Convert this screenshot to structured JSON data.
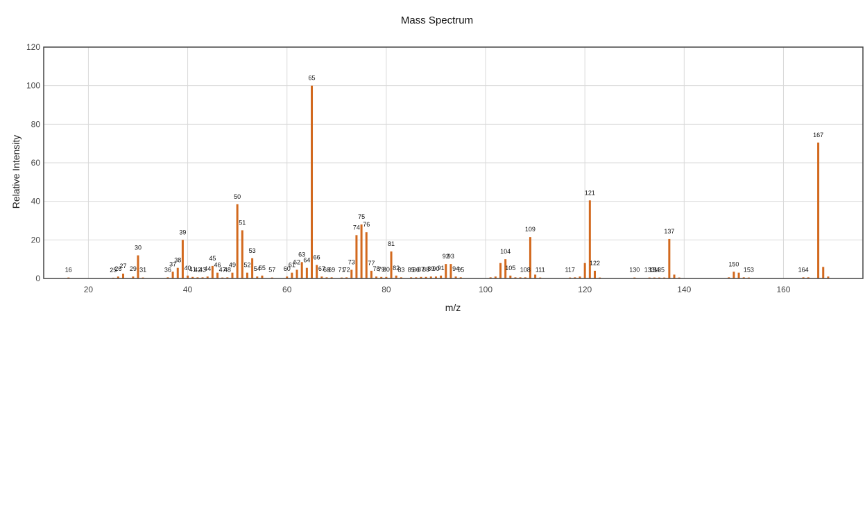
{
  "chart_data": {
    "type": "bar",
    "title": "Mass Spectrum",
    "xlabel": "m/z",
    "ylabel": "Relative Intensity",
    "xlim": [
      11,
      176
    ],
    "ylim": [
      0,
      120
    ],
    "xticks": [
      20,
      40,
      60,
      80,
      100,
      120,
      140,
      160
    ],
    "yticks": [
      0,
      20,
      40,
      60,
      80,
      100,
      120
    ],
    "grid": true,
    "bar_color": "#d2691e",
    "peaks": [
      {
        "mz": 16,
        "intensity": 0.5,
        "label": "16"
      },
      {
        "mz": 25,
        "intensity": 0.4,
        "label": "25"
      },
      {
        "mz": 26,
        "intensity": 1.0,
        "label": "26"
      },
      {
        "mz": 27,
        "intensity": 2.5,
        "label": "27"
      },
      {
        "mz": 29,
        "intensity": 1.0,
        "label": "29"
      },
      {
        "mz": 30,
        "intensity": 12.0,
        "label": "30"
      },
      {
        "mz": 31,
        "intensity": 0.5,
        "label": "31"
      },
      {
        "mz": 36,
        "intensity": 0.6,
        "label": "36"
      },
      {
        "mz": 37,
        "intensity": 3.5,
        "label": "37"
      },
      {
        "mz": 38,
        "intensity": 5.5,
        "label": "38"
      },
      {
        "mz": 39,
        "intensity": 20.0,
        "label": "39"
      },
      {
        "mz": 40,
        "intensity": 1.5,
        "label": "40"
      },
      {
        "mz": 41,
        "intensity": 0.8,
        "label": "41"
      },
      {
        "mz": 42,
        "intensity": 0.6,
        "label": "42"
      },
      {
        "mz": 43,
        "intensity": 0.6,
        "label": "43"
      },
      {
        "mz": 44,
        "intensity": 1.0,
        "label": "44"
      },
      {
        "mz": 45,
        "intensity": 6.5,
        "label": "45"
      },
      {
        "mz": 46,
        "intensity": 3.0,
        "label": "46"
      },
      {
        "mz": 47,
        "intensity": 0.5,
        "label": "47"
      },
      {
        "mz": 48,
        "intensity": 0.6,
        "label": "48"
      },
      {
        "mz": 49,
        "intensity": 3.0,
        "label": "49"
      },
      {
        "mz": 50,
        "intensity": 38.5,
        "label": "50"
      },
      {
        "mz": 51,
        "intensity": 25.0,
        "label": "51"
      },
      {
        "mz": 52,
        "intensity": 3.0,
        "label": "52"
      },
      {
        "mz": 53,
        "intensity": 10.5,
        "label": "53"
      },
      {
        "mz": 54,
        "intensity": 1.0,
        "label": "54"
      },
      {
        "mz": 55,
        "intensity": 1.5,
        "label": "55"
      },
      {
        "mz": 57,
        "intensity": 0.5,
        "label": "57"
      },
      {
        "mz": 60,
        "intensity": 1.0,
        "label": "60"
      },
      {
        "mz": 61,
        "intensity": 3.0,
        "label": "61"
      },
      {
        "mz": 62,
        "intensity": 4.5,
        "label": "62"
      },
      {
        "mz": 63,
        "intensity": 8.5,
        "label": "63"
      },
      {
        "mz": 64,
        "intensity": 5.5,
        "label": "64"
      },
      {
        "mz": 65,
        "intensity": 100.0,
        "label": "65"
      },
      {
        "mz": 66,
        "intensity": 7.0,
        "label": "66"
      },
      {
        "mz": 67,
        "intensity": 1.0,
        "label": "67"
      },
      {
        "mz": 68,
        "intensity": 0.6,
        "label": "68"
      },
      {
        "mz": 69,
        "intensity": 0.6,
        "label": "69"
      },
      {
        "mz": 71,
        "intensity": 0.5,
        "label": "71"
      },
      {
        "mz": 72,
        "intensity": 0.6,
        "label": "72"
      },
      {
        "mz": 73,
        "intensity": 4.5,
        "label": "73"
      },
      {
        "mz": 74,
        "intensity": 22.5,
        "label": "74"
      },
      {
        "mz": 75,
        "intensity": 28.0,
        "label": "75"
      },
      {
        "mz": 76,
        "intensity": 24.0,
        "label": "76"
      },
      {
        "mz": 77,
        "intensity": 4.0,
        "label": "77"
      },
      {
        "mz": 78,
        "intensity": 1.0,
        "label": "78"
      },
      {
        "mz": 79,
        "intensity": 0.8,
        "label": "79"
      },
      {
        "mz": 80,
        "intensity": 0.8,
        "label": "80"
      },
      {
        "mz": 81,
        "intensity": 14.0,
        "label": "81"
      },
      {
        "mz": 82,
        "intensity": 1.5,
        "label": "82"
      },
      {
        "mz": 83,
        "intensity": 0.6,
        "label": "83"
      },
      {
        "mz": 85,
        "intensity": 0.6,
        "label": "85"
      },
      {
        "mz": 86,
        "intensity": 0.6,
        "label": "86"
      },
      {
        "mz": 87,
        "intensity": 0.8,
        "label": "87"
      },
      {
        "mz": 88,
        "intensity": 0.8,
        "label": "88"
      },
      {
        "mz": 89,
        "intensity": 1.0,
        "label": "89"
      },
      {
        "mz": 90,
        "intensity": 1.0,
        "label": "90"
      },
      {
        "mz": 91,
        "intensity": 1.5,
        "label": "91"
      },
      {
        "mz": 92,
        "intensity": 7.5,
        "label": "92"
      },
      {
        "mz": 93,
        "intensity": 7.5,
        "label": "93"
      },
      {
        "mz": 94,
        "intensity": 1.0,
        "label": "94"
      },
      {
        "mz": 95,
        "intensity": 0.6,
        "label": "95"
      },
      {
        "mz": 101,
        "intensity": 0.6,
        "label": ""
      },
      {
        "mz": 102,
        "intensity": 1.0,
        "label": ""
      },
      {
        "mz": 103,
        "intensity": 8.0,
        "label": ""
      },
      {
        "mz": 104,
        "intensity": 10.0,
        "label": "104"
      },
      {
        "mz": 105,
        "intensity": 1.5,
        "label": "105"
      },
      {
        "mz": 106,
        "intensity": 0.6,
        "label": ""
      },
      {
        "mz": 107,
        "intensity": 0.6,
        "label": ""
      },
      {
        "mz": 108,
        "intensity": 0.6,
        "label": "108"
      },
      {
        "mz": 109,
        "intensity": 21.5,
        "label": "109"
      },
      {
        "mz": 110,
        "intensity": 2.0,
        "label": ""
      },
      {
        "mz": 111,
        "intensity": 0.5,
        "label": "111"
      },
      {
        "mz": 117,
        "intensity": 0.5,
        "label": "117"
      },
      {
        "mz": 118,
        "intensity": 0.6,
        "label": ""
      },
      {
        "mz": 119,
        "intensity": 1.0,
        "label": ""
      },
      {
        "mz": 120,
        "intensity": 8.0,
        "label": ""
      },
      {
        "mz": 121,
        "intensity": 40.5,
        "label": "121"
      },
      {
        "mz": 122,
        "intensity": 4.0,
        "label": "122"
      },
      {
        "mz": 123,
        "intensity": 0.5,
        "label": ""
      },
      {
        "mz": 130,
        "intensity": 0.5,
        "label": "130"
      },
      {
        "mz": 133,
        "intensity": 0.5,
        "label": "133"
      },
      {
        "mz": 134,
        "intensity": 0.5,
        "label": "134"
      },
      {
        "mz": 135,
        "intensity": 0.5,
        "label": "135"
      },
      {
        "mz": 136,
        "intensity": 0.5,
        "label": ""
      },
      {
        "mz": 137,
        "intensity": 20.5,
        "label": "137"
      },
      {
        "mz": 138,
        "intensity": 2.0,
        "label": ""
      },
      {
        "mz": 139,
        "intensity": 0.5,
        "label": ""
      },
      {
        "mz": 149,
        "intensity": 0.6,
        "label": ""
      },
      {
        "mz": 150,
        "intensity": 3.5,
        "label": "150"
      },
      {
        "mz": 151,
        "intensity": 3.0,
        "label": ""
      },
      {
        "mz": 152,
        "intensity": 0.6,
        "label": ""
      },
      {
        "mz": 153,
        "intensity": 0.5,
        "label": "153"
      },
      {
        "mz": 164,
        "intensity": 0.6,
        "label": "164"
      },
      {
        "mz": 165,
        "intensity": 0.6,
        "label": ""
      },
      {
        "mz": 167,
        "intensity": 70.5,
        "label": "167"
      },
      {
        "mz": 168,
        "intensity": 6.0,
        "label": ""
      },
      {
        "mz": 169,
        "intensity": 1.0,
        "label": ""
      }
    ]
  }
}
